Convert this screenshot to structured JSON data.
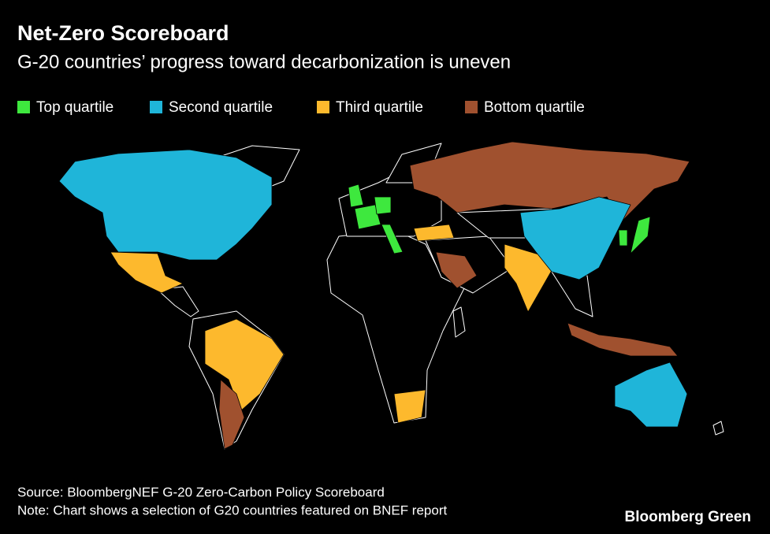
{
  "title": "Net-Zero Scoreboard",
  "subtitle": "G-20 countries’ progress toward decarbonization is uneven",
  "legend": [
    {
      "label": "Top quartile",
      "color": "#3ee83e"
    },
    {
      "label": "Second quartile",
      "color": "#1fb5d9"
    },
    {
      "label": "Third quartile",
      "color": "#fdb92d"
    },
    {
      "label": "Bottom quartile",
      "color": "#a0512f"
    }
  ],
  "source": "Source: BloombergNEF G-20 Zero-Carbon Policy Scoreboard",
  "note": "Note: Chart shows a selection of G20 countries featured on BNEF report",
  "brand": "Bloomberg Green"
}
